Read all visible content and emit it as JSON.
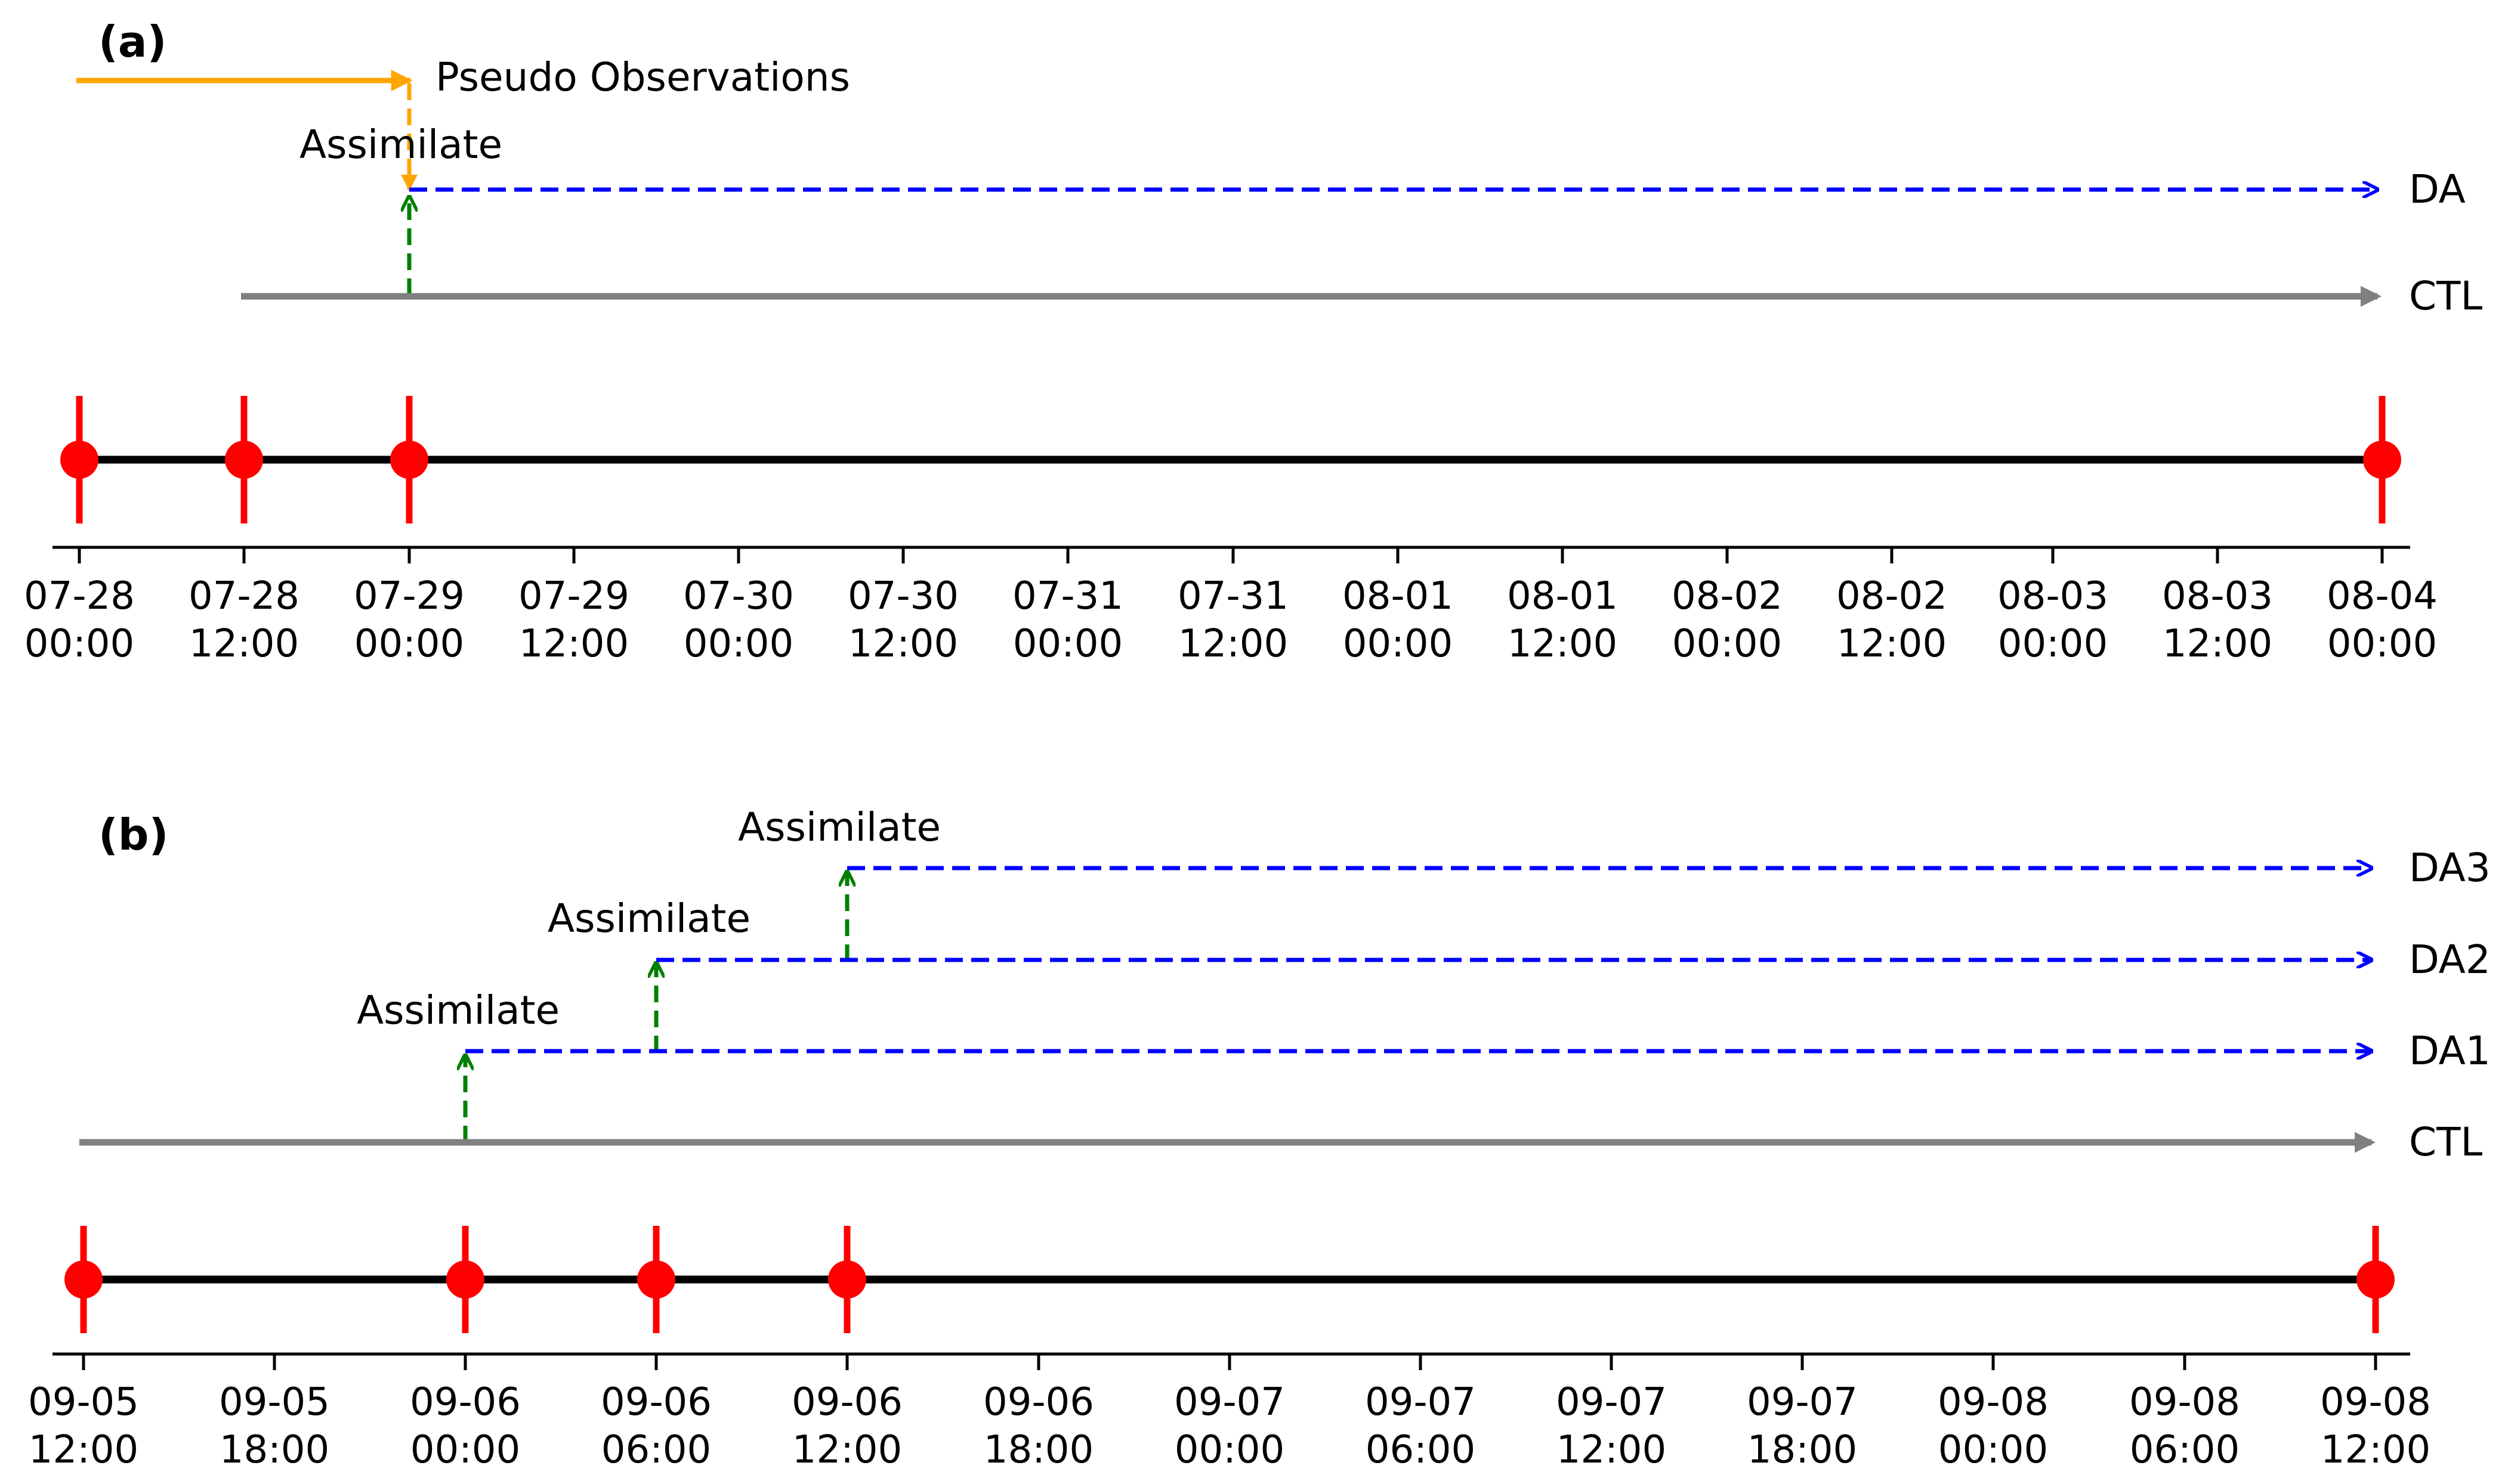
{
  "colors": {
    "ctl": "#808080",
    "da": "#0000ff",
    "assimilate": "#008000",
    "pseudo": "#ffa500",
    "markers": "#ff0000",
    "timeline": "#000000"
  },
  "panels": [
    {
      "label": "(a)",
      "ticks": [
        {
          "date": "07-28",
          "time": "00:00"
        },
        {
          "date": "07-28",
          "time": "12:00"
        },
        {
          "date": "07-29",
          "time": "00:00"
        },
        {
          "date": "07-29",
          "time": "12:00"
        },
        {
          "date": "07-30",
          "time": "00:00"
        },
        {
          "date": "07-30",
          "time": "12:00"
        },
        {
          "date": "07-31",
          "time": "00:00"
        },
        {
          "date": "07-31",
          "time": "12:00"
        },
        {
          "date": "08-01",
          "time": "00:00"
        },
        {
          "date": "08-01",
          "time": "12:00"
        },
        {
          "date": "08-02",
          "time": "00:00"
        },
        {
          "date": "08-02",
          "time": "12:00"
        },
        {
          "date": "08-03",
          "time": "00:00"
        },
        {
          "date": "08-03",
          "time": "12:00"
        },
        {
          "date": "08-04",
          "time": "00:00"
        }
      ],
      "markers": [
        "07-28 00:00",
        "07-28 12:00",
        "07-29 00:00",
        "08-04 00:00"
      ],
      "runs": [
        {
          "name": "CTL",
          "style": "solid",
          "start": "07-28 12:00",
          "end": "08-04 00:00"
        },
        {
          "name": "DA",
          "style": "dashed",
          "start": "07-29 00:00",
          "end": "08-04 00:00",
          "assimilate_at": "07-29 00:00",
          "assimilate_label": "Assimilate"
        }
      ],
      "pseudo_observations": {
        "label": "Pseudo Observations",
        "start": "07-28 00:00",
        "end": "07-29 00:00"
      }
    },
    {
      "label": "(b)",
      "ticks": [
        {
          "date": "09-05",
          "time": "12:00"
        },
        {
          "date": "09-05",
          "time": "18:00"
        },
        {
          "date": "09-06",
          "time": "00:00"
        },
        {
          "date": "09-06",
          "time": "06:00"
        },
        {
          "date": "09-06",
          "time": "12:00"
        },
        {
          "date": "09-06",
          "time": "18:00"
        },
        {
          "date": "09-07",
          "time": "00:00"
        },
        {
          "date": "09-07",
          "time": "06:00"
        },
        {
          "date": "09-07",
          "time": "12:00"
        },
        {
          "date": "09-07",
          "time": "18:00"
        },
        {
          "date": "09-08",
          "time": "00:00"
        },
        {
          "date": "09-08",
          "time": "06:00"
        },
        {
          "date": "09-08",
          "time": "12:00"
        }
      ],
      "markers": [
        "09-05 12:00",
        "09-06 00:00",
        "09-06 06:00",
        "09-06 12:00",
        "09-08 12:00"
      ],
      "runs": [
        {
          "name": "CTL",
          "style": "solid",
          "start": "09-05 12:00",
          "end": "09-08 12:00"
        },
        {
          "name": "DA1",
          "style": "dashed",
          "start": "09-06 00:00",
          "end": "09-08 12:00",
          "assimilate_at": "09-06 00:00",
          "assimilate_label": "Assimilate"
        },
        {
          "name": "DA2",
          "style": "dashed",
          "start": "09-06 06:00",
          "end": "09-08 12:00",
          "assimilate_at": "09-06 06:00",
          "assimilate_label": "Assimilate"
        },
        {
          "name": "DA3",
          "style": "dashed",
          "start": "09-06 12:00",
          "end": "09-08 12:00",
          "assimilate_at": "09-06 12:00",
          "assimilate_label": "Assimilate"
        }
      ]
    }
  ]
}
